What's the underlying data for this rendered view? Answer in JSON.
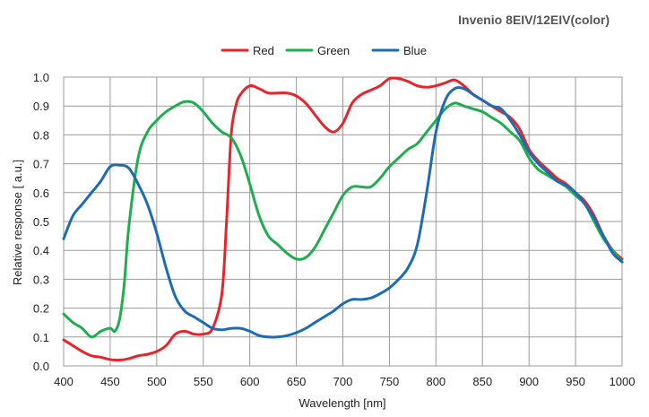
{
  "chart_data": {
    "type": "line",
    "title": "Invenio 8EIV/12EIV(color)",
    "xlabel": "Wavelength [nm]",
    "ylabel": "Relative response [ a.u.]",
    "xlim": [
      400,
      1000
    ],
    "ylim": [
      0.0,
      1.0
    ],
    "x_ticks": [
      "400",
      "450",
      "500",
      "550",
      "600",
      "650",
      "700",
      "750",
      "800",
      "850",
      "900",
      "950",
      "1000"
    ],
    "y_ticks": [
      "0.0",
      "0.1",
      "0.2",
      "0.3",
      "0.4",
      "0.5",
      "0.6",
      "0.7",
      "0.8",
      "0.9",
      "1.0"
    ],
    "grid": true,
    "legend_position": "top-center",
    "series": [
      {
        "name": "Red",
        "color": "#e8242b",
        "points": [
          [
            400,
            0.09
          ],
          [
            410,
            0.07
          ],
          [
            420,
            0.05
          ],
          [
            430,
            0.035
          ],
          [
            440,
            0.03
          ],
          [
            450,
            0.022
          ],
          [
            460,
            0.02
          ],
          [
            470,
            0.025
          ],
          [
            480,
            0.035
          ],
          [
            490,
            0.04
          ],
          [
            500,
            0.05
          ],
          [
            510,
            0.07
          ],
          [
            520,
            0.11
          ],
          [
            530,
            0.12
          ],
          [
            540,
            0.11
          ],
          [
            550,
            0.11
          ],
          [
            560,
            0.13
          ],
          [
            570,
            0.25
          ],
          [
            575,
            0.5
          ],
          [
            580,
            0.8
          ],
          [
            585,
            0.9
          ],
          [
            590,
            0.94
          ],
          [
            600,
            0.97
          ],
          [
            610,
            0.96
          ],
          [
            620,
            0.945
          ],
          [
            630,
            0.945
          ],
          [
            640,
            0.945
          ],
          [
            650,
            0.935
          ],
          [
            660,
            0.91
          ],
          [
            670,
            0.87
          ],
          [
            680,
            0.83
          ],
          [
            690,
            0.81
          ],
          [
            700,
            0.84
          ],
          [
            710,
            0.91
          ],
          [
            720,
            0.94
          ],
          [
            730,
            0.955
          ],
          [
            740,
            0.97
          ],
          [
            750,
            0.995
          ],
          [
            760,
            0.995
          ],
          [
            770,
            0.985
          ],
          [
            780,
            0.97
          ],
          [
            790,
            0.965
          ],
          [
            800,
            0.97
          ],
          [
            810,
            0.98
          ],
          [
            820,
            0.99
          ],
          [
            830,
            0.97
          ],
          [
            840,
            0.94
          ],
          [
            850,
            0.92
          ],
          [
            860,
            0.9
          ],
          [
            870,
            0.88
          ],
          [
            880,
            0.86
          ],
          [
            890,
            0.82
          ],
          [
            900,
            0.75
          ],
          [
            910,
            0.71
          ],
          [
            920,
            0.68
          ],
          [
            930,
            0.65
          ],
          [
            940,
            0.63
          ],
          [
            950,
            0.6
          ],
          [
            960,
            0.57
          ],
          [
            970,
            0.52
          ],
          [
            980,
            0.45
          ],
          [
            990,
            0.4
          ],
          [
            1000,
            0.37
          ]
        ]
      },
      {
        "name": "Green",
        "color": "#1fad4f",
        "points": [
          [
            400,
            0.18
          ],
          [
            410,
            0.15
          ],
          [
            420,
            0.13
          ],
          [
            430,
            0.1
          ],
          [
            440,
            0.12
          ],
          [
            450,
            0.13
          ],
          [
            455,
            0.12
          ],
          [
            460,
            0.16
          ],
          [
            465,
            0.28
          ],
          [
            470,
            0.48
          ],
          [
            480,
            0.72
          ],
          [
            490,
            0.81
          ],
          [
            500,
            0.85
          ],
          [
            510,
            0.88
          ],
          [
            520,
            0.9
          ],
          [
            530,
            0.915
          ],
          [
            540,
            0.91
          ],
          [
            550,
            0.88
          ],
          [
            560,
            0.84
          ],
          [
            570,
            0.81
          ],
          [
            580,
            0.79
          ],
          [
            590,
            0.73
          ],
          [
            600,
            0.63
          ],
          [
            610,
            0.52
          ],
          [
            620,
            0.45
          ],
          [
            630,
            0.42
          ],
          [
            640,
            0.39
          ],
          [
            650,
            0.37
          ],
          [
            660,
            0.375
          ],
          [
            670,
            0.41
          ],
          [
            680,
            0.47
          ],
          [
            690,
            0.53
          ],
          [
            700,
            0.59
          ],
          [
            710,
            0.62
          ],
          [
            720,
            0.62
          ],
          [
            730,
            0.62
          ],
          [
            740,
            0.65
          ],
          [
            750,
            0.69
          ],
          [
            760,
            0.72
          ],
          [
            770,
            0.75
          ],
          [
            780,
            0.77
          ],
          [
            790,
            0.81
          ],
          [
            800,
            0.85
          ],
          [
            810,
            0.89
          ],
          [
            820,
            0.91
          ],
          [
            830,
            0.9
          ],
          [
            840,
            0.89
          ],
          [
            850,
            0.88
          ],
          [
            860,
            0.86
          ],
          [
            870,
            0.84
          ],
          [
            880,
            0.81
          ],
          [
            890,
            0.78
          ],
          [
            900,
            0.72
          ],
          [
            910,
            0.68
          ],
          [
            920,
            0.66
          ],
          [
            930,
            0.64
          ],
          [
            940,
            0.62
          ],
          [
            950,
            0.59
          ],
          [
            960,
            0.56
          ],
          [
            970,
            0.5
          ],
          [
            980,
            0.44
          ],
          [
            990,
            0.4
          ],
          [
            1000,
            0.36
          ]
        ]
      },
      {
        "name": "Blue",
        "color": "#1d6bb5",
        "points": [
          [
            400,
            0.44
          ],
          [
            410,
            0.52
          ],
          [
            420,
            0.56
          ],
          [
            430,
            0.6
          ],
          [
            440,
            0.64
          ],
          [
            450,
            0.69
          ],
          [
            460,
            0.695
          ],
          [
            470,
            0.685
          ],
          [
            480,
            0.63
          ],
          [
            490,
            0.56
          ],
          [
            500,
            0.46
          ],
          [
            510,
            0.34
          ],
          [
            520,
            0.24
          ],
          [
            530,
            0.19
          ],
          [
            540,
            0.17
          ],
          [
            550,
            0.15
          ],
          [
            560,
            0.13
          ],
          [
            570,
            0.125
          ],
          [
            580,
            0.13
          ],
          [
            590,
            0.13
          ],
          [
            600,
            0.12
          ],
          [
            610,
            0.105
          ],
          [
            620,
            0.1
          ],
          [
            630,
            0.1
          ],
          [
            640,
            0.105
          ],
          [
            650,
            0.115
          ],
          [
            660,
            0.13
          ],
          [
            670,
            0.15
          ],
          [
            680,
            0.17
          ],
          [
            690,
            0.19
          ],
          [
            700,
            0.215
          ],
          [
            710,
            0.23
          ],
          [
            720,
            0.23
          ],
          [
            730,
            0.235
          ],
          [
            740,
            0.25
          ],
          [
            750,
            0.27
          ],
          [
            760,
            0.3
          ],
          [
            770,
            0.34
          ],
          [
            780,
            0.42
          ],
          [
            790,
            0.6
          ],
          [
            800,
            0.81
          ],
          [
            810,
            0.92
          ],
          [
            820,
            0.96
          ],
          [
            830,
            0.96
          ],
          [
            840,
            0.94
          ],
          [
            850,
            0.92
          ],
          [
            860,
            0.9
          ],
          [
            870,
            0.89
          ],
          [
            880,
            0.85
          ],
          [
            890,
            0.8
          ],
          [
            900,
            0.74
          ],
          [
            910,
            0.7
          ],
          [
            920,
            0.67
          ],
          [
            930,
            0.64
          ],
          [
            940,
            0.625
          ],
          [
            950,
            0.6
          ],
          [
            960,
            0.56
          ],
          [
            970,
            0.51
          ],
          [
            980,
            0.45
          ],
          [
            990,
            0.39
          ],
          [
            1000,
            0.36
          ]
        ]
      }
    ]
  }
}
